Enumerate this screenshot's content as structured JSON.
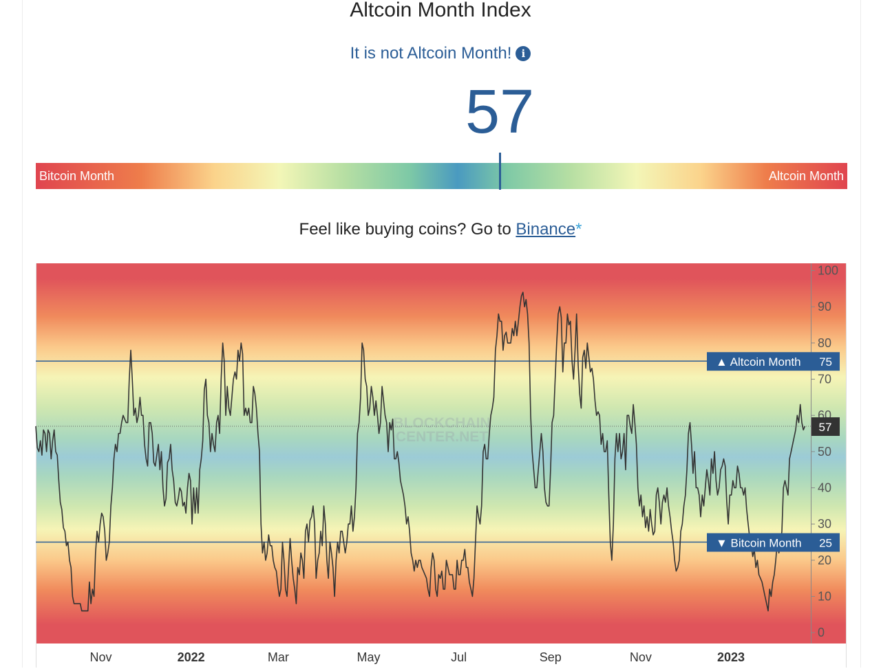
{
  "title": "Altcoin Month Index",
  "status": {
    "text": "It is not Altcoin Month!",
    "icon": "info-icon"
  },
  "current_value": "57",
  "gauge": {
    "left_label": "Bitcoin Month",
    "right_label": "Altcoin Month",
    "value": 57
  },
  "promo": {
    "prefix": "Feel like buying coins? Go to ",
    "link": "Binance",
    "suffix": "*"
  },
  "watermark": [
    "BLOCKCHAIN",
    "CENTER.NET"
  ],
  "colors": {
    "accent": "#2b5d96",
    "line": "#333333",
    "label_bg": "#2b5d96",
    "current_bg": "#333333"
  },
  "chart_data": {
    "type": "line",
    "x_labels": [
      "Nov",
      "2022",
      "Mar",
      "May",
      "Jul",
      "Sep",
      "Nov",
      "2023"
    ],
    "x_labels_bold": [
      false,
      true,
      false,
      false,
      false,
      false,
      false,
      true
    ],
    "x_label_dates": [
      "2021-11-01",
      "2022-01-01",
      "2022-03-01",
      "2022-05-01",
      "2022-07-01",
      "2022-09-01",
      "2022-11-01",
      "2023-01-01"
    ],
    "x_range": [
      "2021-09-18",
      "2023-02-24"
    ],
    "y_ticks": [
      0,
      10,
      20,
      30,
      40,
      50,
      60,
      70,
      80,
      90,
      100
    ],
    "ylim": [
      -3,
      102
    ],
    "reference_lines": [
      {
        "label": "▲ Altcoin Month",
        "value": 75
      },
      {
        "label": "▼ Bitcoin Month",
        "value": 25
      }
    ],
    "current": 57,
    "series": [
      {
        "start_date": "2021-09-18",
        "end_date": "2023-02-20",
        "values": [
          57,
          51,
          50,
          53,
          49,
          56,
          55,
          50,
          56,
          55,
          48,
          53,
          56,
          50,
          49,
          42,
          36,
          34,
          29,
          28,
          24,
          25,
          20,
          18,
          10,
          8,
          8,
          8,
          8,
          8,
          6,
          6,
          6,
          6,
          6,
          14,
          8,
          12,
          10,
          22,
          28,
          25,
          30,
          33,
          32,
          28,
          20,
          22,
          25,
          35,
          40,
          48,
          52,
          50,
          55,
          55,
          58,
          60,
          59,
          58,
          58,
          70,
          78,
          70,
          60,
          62,
          58,
          60,
          65,
          60,
          60,
          52,
          48,
          46,
          58,
          58,
          55,
          47,
          46,
          49,
          52,
          45,
          50,
          40,
          35,
          37,
          47,
          48,
          52,
          45,
          42,
          36,
          35,
          37,
          40,
          39,
          35,
          36,
          33,
          40,
          44,
          42,
          30,
          40,
          33,
          40,
          33,
          45,
          48,
          53,
          67,
          70,
          60,
          58,
          50,
          55,
          52,
          50,
          58,
          60,
          55,
          70,
          80,
          75,
          60,
          68,
          62,
          60,
          65,
          70,
          72,
          70,
          78,
          75,
          80,
          77,
          60,
          62,
          60,
          62,
          58,
          58,
          68,
          66,
          62,
          55,
          50,
          30,
          22,
          25,
          20,
          22,
          27,
          24,
          24,
          20,
          18,
          17,
          13,
          10,
          12,
          25,
          20,
          12,
          10,
          18,
          26,
          20,
          15,
          12,
          8,
          18,
          16,
          22,
          20,
          15,
          28,
          30,
          25,
          31,
          32,
          35,
          30,
          15,
          20,
          22,
          28,
          24,
          35,
          30,
          20,
          15,
          25,
          22,
          18,
          10,
          20,
          25,
          22,
          28,
          28,
          25,
          22,
          25,
          30,
          30,
          35,
          28,
          32,
          40,
          55,
          58,
          65,
          80,
          78,
          70,
          68,
          60,
          62,
          68,
          65,
          60,
          64,
          60,
          55,
          58,
          68,
          64,
          60,
          58,
          50,
          58,
          56,
          59,
          48,
          48,
          50,
          47,
          42,
          40,
          38,
          35,
          30,
          32,
          28,
          22,
          20,
          17,
          20,
          18,
          20,
          20,
          18,
          17,
          16,
          15,
          12,
          10,
          18,
          22,
          20,
          12,
          10,
          16,
          15,
          17,
          12,
          12,
          20,
          18,
          16,
          16,
          16,
          12,
          12,
          20,
          16,
          16,
          20,
          20,
          23,
          18,
          18,
          14,
          12,
          10,
          15,
          25,
          35,
          32,
          30,
          35,
          50,
          52,
          48,
          48,
          55,
          60,
          62,
          65,
          78,
          82,
          88,
          86,
          86,
          78,
          82,
          83,
          80,
          80,
          80,
          84,
          82,
          86,
          82,
          86,
          90,
          93,
          94,
          90,
          92,
          88,
          80,
          60,
          50,
          45,
          40,
          40,
          45,
          50,
          55,
          50,
          40,
          36,
          35,
          35,
          45,
          58,
          60,
          70,
          80,
          88,
          90,
          87,
          72,
          80,
          80,
          88,
          85,
          86,
          75,
          70,
          78,
          88,
          74,
          66,
          62,
          76,
          78,
          73,
          80,
          76,
          72,
          73,
          70,
          64,
          60,
          61,
          60,
          52,
          55,
          50,
          50,
          53,
          38,
          25,
          20,
          30,
          48,
          55,
          50,
          55,
          48,
          50,
          55,
          45,
          60,
          60,
          57,
          55,
          63,
          58,
          52,
          40,
          35,
          38,
          32,
          35,
          29,
          32,
          28,
          34,
          30,
          27,
          28,
          38,
          40,
          36,
          30,
          36,
          38,
          36,
          40,
          35,
          32,
          28,
          25,
          20,
          17,
          18,
          20,
          28,
          30,
          35,
          38,
          45,
          55,
          58,
          52,
          44,
          50,
          40,
          40,
          38,
          32,
          38,
          35,
          40,
          45,
          42,
          38,
          48,
          44,
          50,
          42,
          38,
          40,
          45,
          46,
          48,
          46,
          36,
          30,
          38,
          38,
          42,
          40,
          40,
          46,
          44,
          40,
          40,
          38,
          40,
          34,
          30,
          26,
          24,
          21,
          23,
          18,
          20,
          16,
          15,
          14,
          12,
          10,
          8,
          6,
          12,
          10,
          14,
          16,
          20,
          25,
          22,
          24,
          28,
          40,
          42,
          40,
          38,
          48,
          50,
          52,
          54,
          56,
          60,
          58,
          63,
          58,
          56,
          57
        ]
      }
    ]
  }
}
